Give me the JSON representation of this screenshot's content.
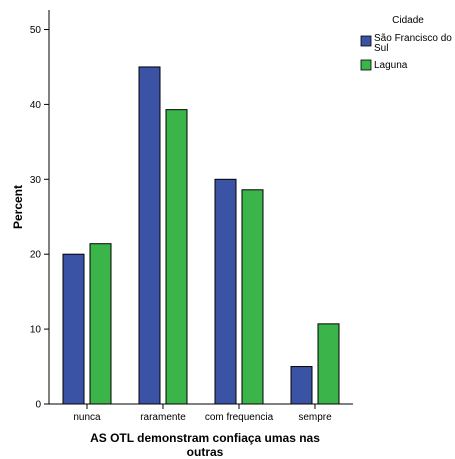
{
  "chart_data": {
    "type": "bar",
    "categories": [
      "nunca",
      "raramente",
      "com frequencia",
      "sempre"
    ],
    "series": [
      {
        "name": "São Francisco do Sul",
        "color": "#3b53a4",
        "values": [
          20,
          45,
          30,
          5
        ]
      },
      {
        "name": "Laguna",
        "color": "#3bb54a",
        "values": [
          21.4,
          39.3,
          28.6,
          10.7
        ]
      }
    ],
    "xlabel_lines": [
      "AS OTL demonstram confiaça umas nas",
      "outras"
    ],
    "ylabel": "Percent",
    "ylim": [
      0,
      50
    ],
    "yticks": [
      0,
      10,
      20,
      30,
      40,
      50
    ],
    "legend": {
      "title": "Cidade",
      "placement": "top-right",
      "entries": [
        {
          "lines": [
            "São Francisco do",
            "Sul"
          ]
        },
        {
          "lines": [
            "Laguna"
          ]
        }
      ]
    },
    "grid": false
  }
}
